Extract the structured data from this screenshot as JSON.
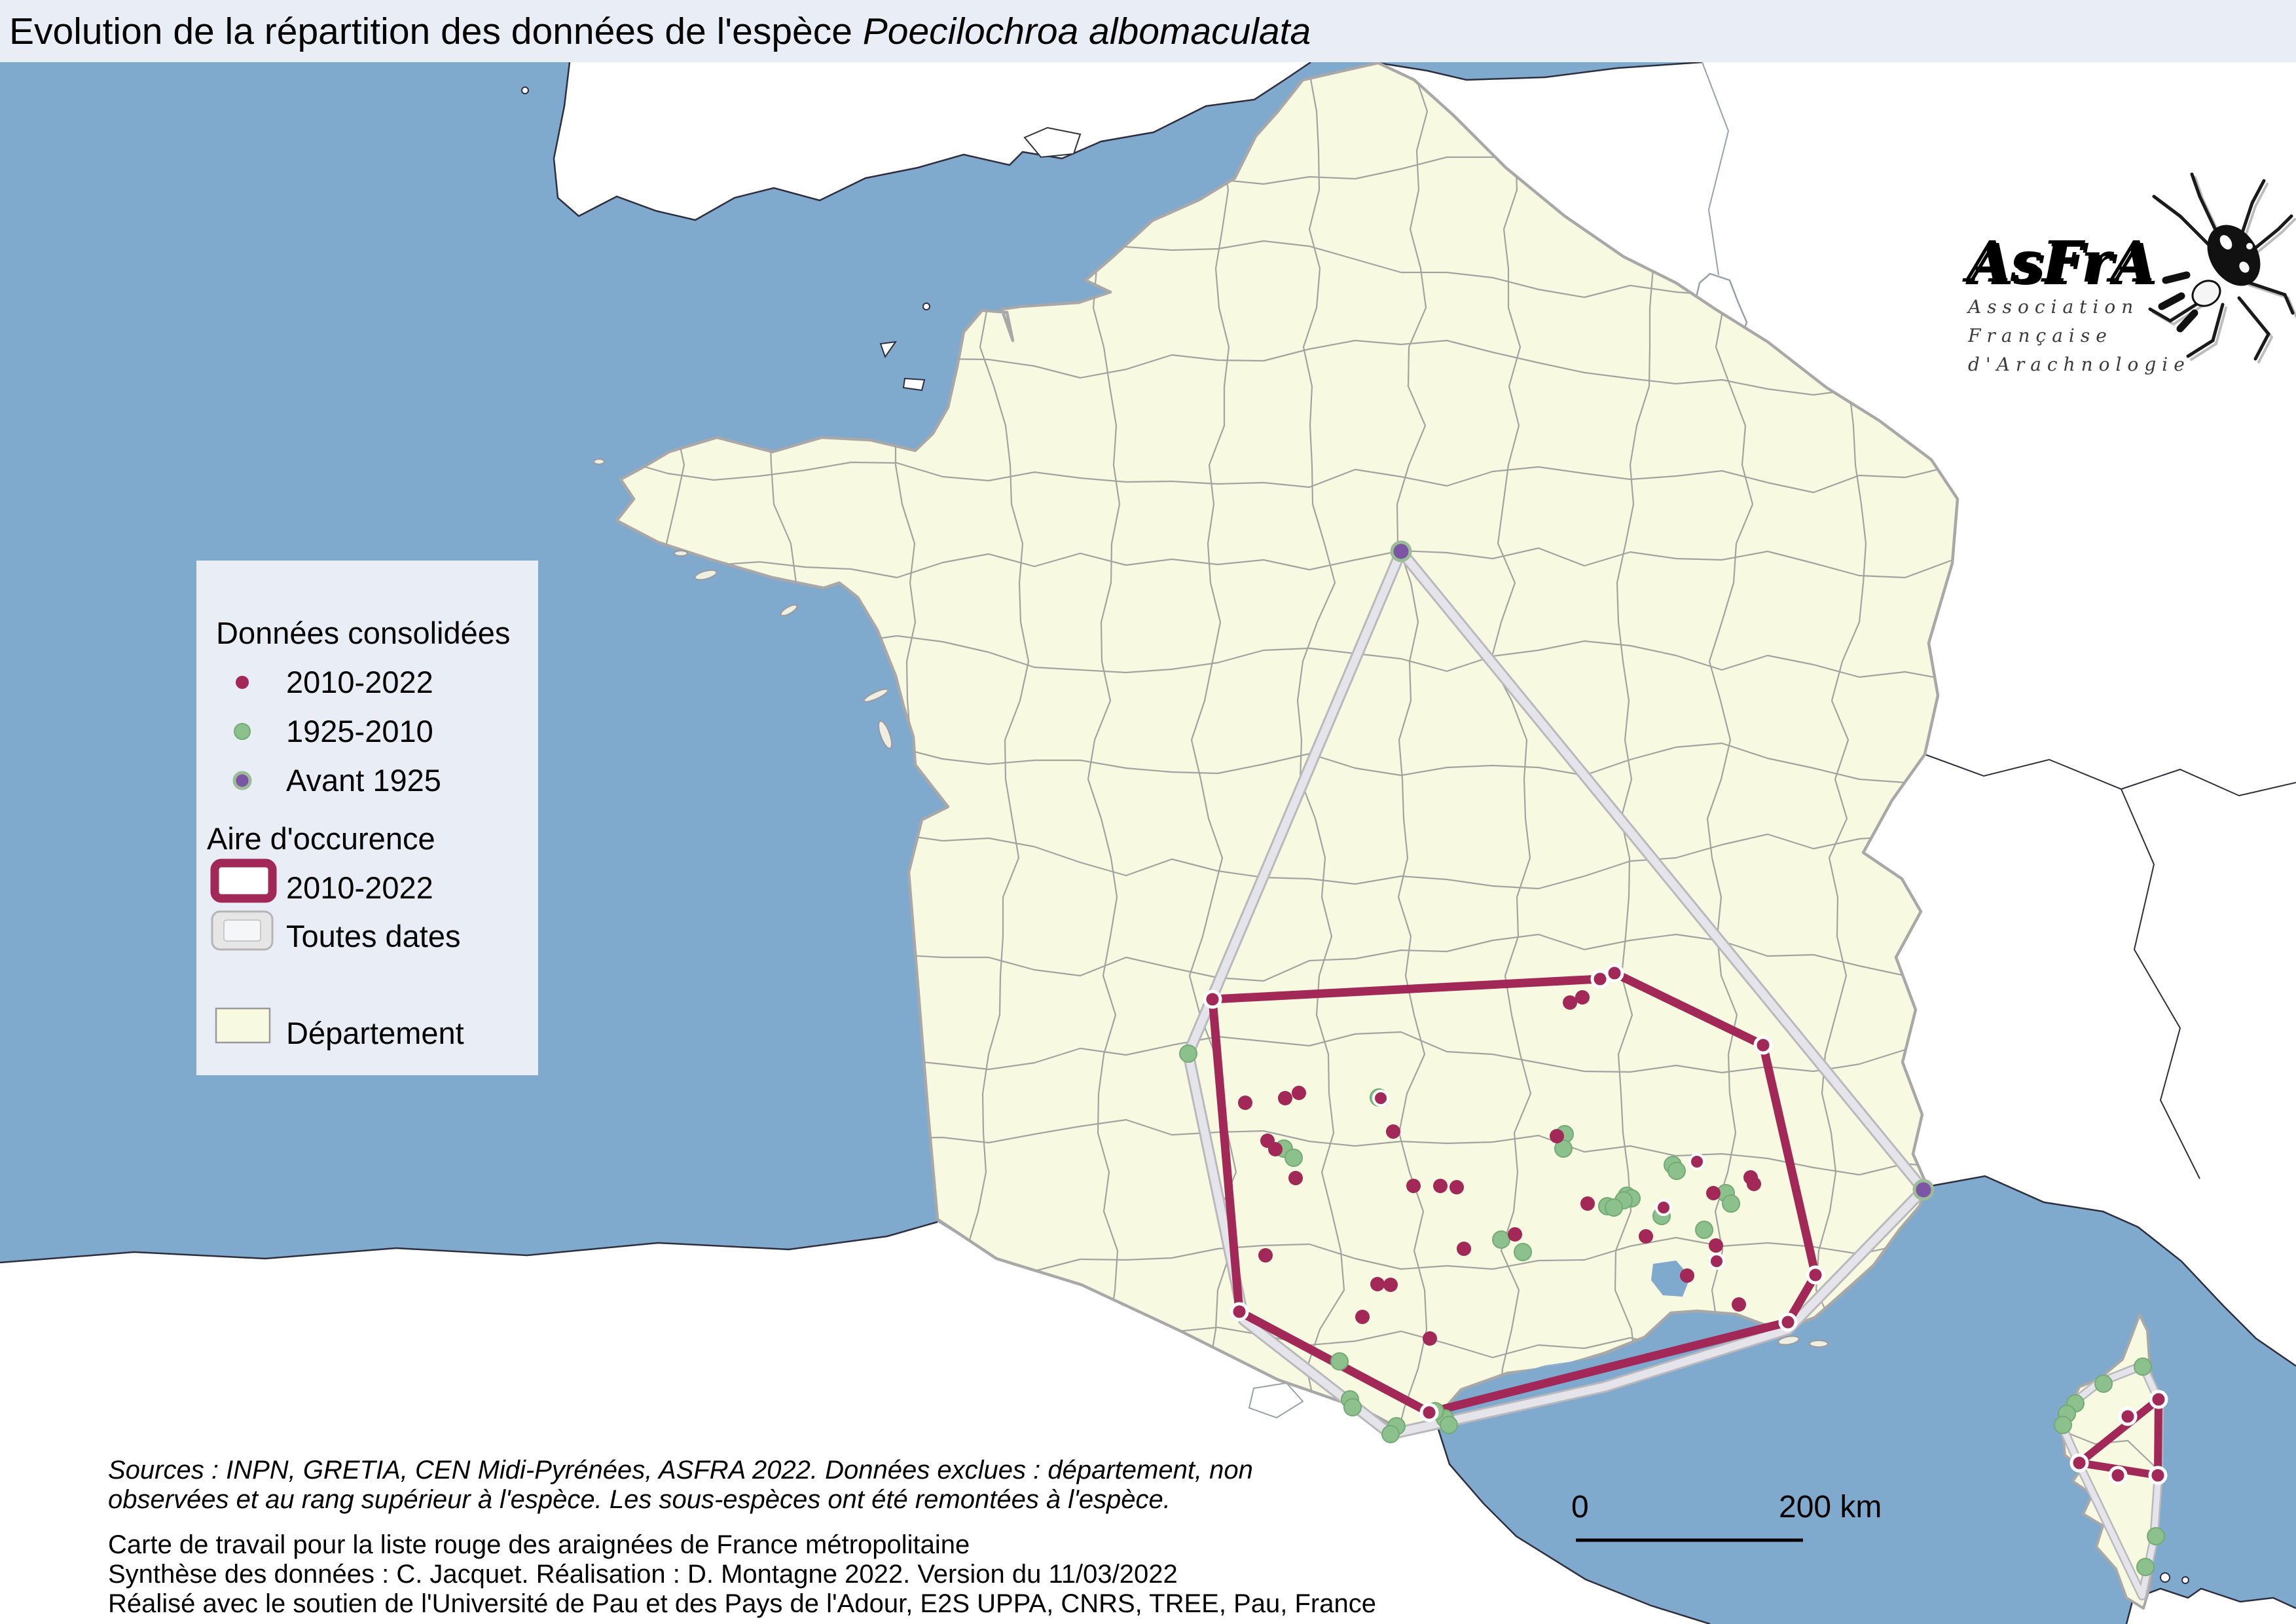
{
  "title": {
    "prefix": "Evolution de la répartition des données de l'espèce ",
    "species": "Poecilochroa albomaculata"
  },
  "legend": {
    "consolidated_heading": "Données consolidées",
    "points": [
      {
        "label": "2010-2022",
        "color": "#a22857"
      },
      {
        "label": "1925-2010",
        "color": "#8cc08c"
      },
      {
        "label": "Avant 1925",
        "color": "#7d55a5"
      }
    ],
    "occurrence_heading": "Aire d'occurence",
    "areas": [
      {
        "label": "2010-2022",
        "color": "#a22857"
      },
      {
        "label": "Toutes dates",
        "color": "#d9d9dc"
      }
    ],
    "department": {
      "label": "Département",
      "fill": "#f7f9e0"
    }
  },
  "logo": {
    "acronym": "AsFrA",
    "lines": [
      "Association",
      "Française",
      "d'Arachnologie"
    ]
  },
  "scalebar": {
    "start": "0",
    "end": "200 km"
  },
  "footer": {
    "sources_italic": [
      "Sources : INPN, GRETIA, CEN Midi-Pyrénées, ASFRA 2022. Données exclues : département, non",
      "observées et au rang supérieur à l'espèce. Les sous-espèces ont été remontées à l'espèce."
    ],
    "lines": [
      "Carte de travail pour la liste rouge des araignées de France métropolitaine",
      "Synthèse des données : C. Jacquet. Réalisation : D. Montagne 2022. Version du 11/03/2022",
      "Réalisé avec le soutien de l'Université de Pau et des Pays de l'Adour, E2S UPPA, CNRS, TREE, Pau, France"
    ]
  },
  "map_overlay": {
    "colors": {
      "recent": "#a22857",
      "old": "#8cc08c",
      "old_edge": "#74aa74",
      "before1925": "#7d55a5",
      "before1925_ring": "#9cbb97",
      "hull_all": "#e4e4ea",
      "hull_all_edge": "#b9b9bd"
    },
    "hull_recent_mainland": [
      [
        1852,
        1526
      ],
      [
        2444,
        1495
      ],
      [
        2466,
        1486
      ],
      [
        2693,
        1596
      ],
      [
        2773,
        1947
      ],
      [
        2731,
        2019
      ],
      [
        2183,
        2157
      ],
      [
        1893,
        2003
      ]
    ],
    "hull_recent_corsica": [
      [
        3297,
        2137
      ],
      [
        3176,
        2234
      ],
      [
        3296,
        2253
      ]
    ],
    "hull_recent_corsica_edge_dots": [
      [
        3250,
        2163
      ],
      [
        3235,
        2253
      ]
    ],
    "hull_all_dates_mainland": [
      [
        2140,
        842
      ],
      [
        1815,
        1609
      ],
      [
        1900,
        2016
      ],
      [
        2124,
        2190
      ],
      [
        2450,
        2118
      ],
      [
        2731,
        2030
      ],
      [
        2938,
        1817
      ]
    ],
    "hull_all_dates_corsica": [
      [
        3273,
        2085
      ],
      [
        3205,
        2112
      ],
      [
        3163,
        2145
      ],
      [
        3150,
        2178
      ],
      [
        3176,
        2237
      ],
      [
        3272,
        2437
      ],
      [
        3290,
        2350
      ],
      [
        3297,
        2250
      ],
      [
        3298,
        2140
      ]
    ],
    "points_recent": [
      [
        1902,
        1684,
        0
      ],
      [
        1963,
        1677,
        0
      ],
      [
        1984,
        1669,
        0
      ],
      [
        1936,
        1742,
        0
      ],
      [
        1948,
        1755,
        0
      ],
      [
        2109,
        1677,
        1
      ],
      [
        2128,
        1728,
        0
      ],
      [
        1979,
        1799,
        0
      ],
      [
        2159,
        1811,
        0
      ],
      [
        2200,
        1811,
        0
      ],
      [
        2225,
        1813,
        0
      ],
      [
        2378,
        1735,
        0
      ],
      [
        2425,
        1838,
        0
      ],
      [
        2314,
        1885,
        0
      ],
      [
        2236,
        1907,
        0
      ],
      [
        1933,
        1917,
        0
      ],
      [
        2104,
        1961,
        0
      ],
      [
        2124,
        1962,
        0
      ],
      [
        2081,
        2011,
        0
      ],
      [
        2184,
        2044,
        0
      ],
      [
        2398,
        1531,
        0
      ],
      [
        2417,
        1523,
        0
      ],
      [
        2592,
        1774,
        1
      ],
      [
        2674,
        1798,
        0
      ],
      [
        2679,
        1808,
        0
      ],
      [
        2617,
        1822,
        0
      ],
      [
        2541,
        1844,
        1
      ],
      [
        2514,
        1888,
        0
      ],
      [
        2621,
        1902,
        0
      ],
      [
        2622,
        1926,
        1
      ],
      [
        2577,
        1948,
        0
      ],
      [
        2656,
        1992,
        0
      ]
    ],
    "points_old": [
      [
        1815,
        1609
      ],
      [
        1961,
        1754
      ],
      [
        1976,
        1768
      ],
      [
        2106,
        1676
      ],
      [
        2390,
        1732
      ],
      [
        2388,
        1754
      ],
      [
        2293,
        1893
      ],
      [
        2326,
        1912
      ],
      [
        2555,
        1779
      ],
      [
        2561,
        1788
      ],
      [
        2636,
        1822
      ],
      [
        2644,
        1838
      ],
      [
        2485,
        1826
      ],
      [
        2492,
        1830
      ],
      [
        2480,
        1833
      ],
      [
        2455,
        1842
      ],
      [
        2465,
        1844
      ],
      [
        2538,
        1857
      ],
      [
        2603,
        1878
      ],
      [
        2046,
        2079
      ],
      [
        2062,
        2137
      ],
      [
        2066,
        2149
      ],
      [
        2133,
        2178
      ],
      [
        2124,
        2190
      ],
      [
        2207,
        2166
      ],
      [
        2213,
        2176
      ],
      [
        2192,
        2155
      ],
      [
        3273,
        2087
      ],
      [
        3213,
        2113
      ],
      [
        3170,
        2143
      ],
      [
        3157,
        2159
      ],
      [
        3151,
        2176
      ],
      [
        3293,
        2346
      ],
      [
        3277,
        2393
      ]
    ],
    "points_before_1925": [
      [
        2140,
        842
      ],
      [
        2938,
        1817
      ]
    ]
  }
}
